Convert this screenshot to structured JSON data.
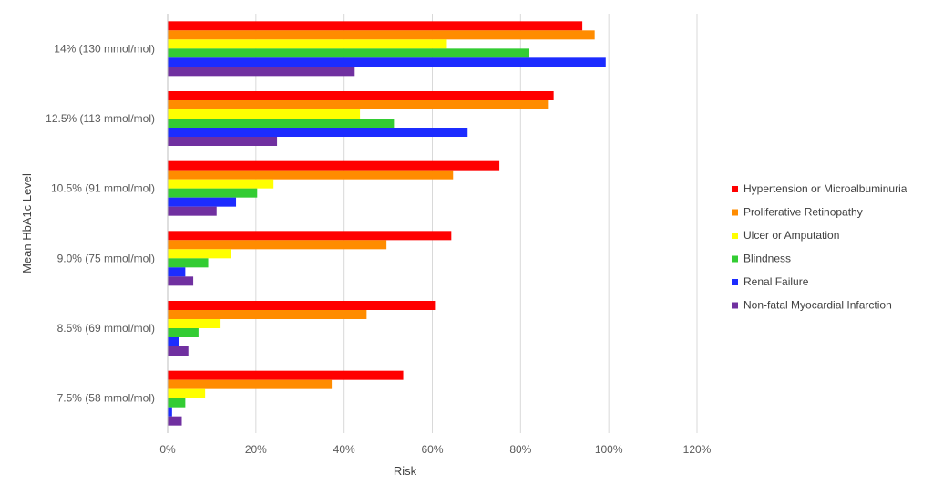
{
  "chart_data": {
    "type": "bar",
    "orientation": "horizontal",
    "title": "",
    "xlabel": "Risk",
    "ylabel": "Mean HbA1c Level",
    "xlim": [
      0,
      1.2
    ],
    "x_ticks": [
      "0%",
      "20%",
      "40%",
      "60%",
      "80%",
      "100%",
      "120%"
    ],
    "grid": true,
    "legend_position": "right",
    "categories": [
      "14% (130 mmol/mol)",
      "12.5% (113 mmol/mol)",
      "10.5% (91 mmol/mol)",
      "9.0% (75 mmol/mol)",
      "8.5% (69 mmol/mol)",
      "7.5% (58 mmol/mol)"
    ],
    "series": [
      {
        "name": "Hypertension or Microalbuminuria",
        "color": "#ff0000",
        "values": [
          0.94,
          0.875,
          0.752,
          0.643,
          0.606,
          0.534
        ]
      },
      {
        "name": "Proliferative Retinopathy",
        "color": "#ff8c00",
        "values": [
          0.968,
          0.862,
          0.647,
          0.496,
          0.451,
          0.372
        ]
      },
      {
        "name": "Ulcer or Amputation",
        "color": "#ffff00",
        "values": [
          0.633,
          0.436,
          0.24,
          0.143,
          0.12,
          0.085
        ]
      },
      {
        "name": "Blindness",
        "color": "#33cc33",
        "values": [
          0.82,
          0.513,
          0.203,
          0.092,
          0.07,
          0.04
        ]
      },
      {
        "name": "Renal Failure",
        "color": "#1c2cff",
        "values": [
          0.993,
          0.68,
          0.155,
          0.04,
          0.025,
          0.01
        ]
      },
      {
        "name": "Non-fatal Myocardial Infarction",
        "color": "#7030a0",
        "values": [
          0.424,
          0.248,
          0.111,
          0.058,
          0.047,
          0.032
        ]
      }
    ]
  }
}
